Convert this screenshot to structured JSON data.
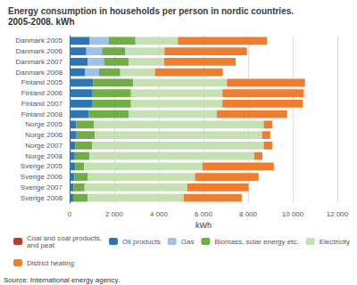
{
  "chart_data": {
    "type": "bar",
    "orientation": "horizontal",
    "stacked": true,
    "title": "Energy consumption in households per person in nordic countries.",
    "subtitle": "2005-2008. kWh",
    "xlabel": "kWh",
    "annotations": [
      "Source: International energy agency."
    ],
    "categories": [
      "Danmark 2005",
      "Danmark 2006",
      "Danmark 2007",
      "Danmark 2008",
      "  Finland 2005",
      "  Finland 2006",
      "  Finland 2007",
      "  Finland 2008",
      "    Norge 2005",
      "    Norge 2006",
      "    Norge 2007",
      "    Norge 2008",
      "  Sverige 2005",
      "  Sverige 2006",
      "  Sverige 2007",
      "  Sverige 2008"
    ],
    "series": [
      {
        "name": "Coal and coal products,\nand peat",
        "color": "#c0392b",
        "values": [
          0,
          0,
          0,
          0,
          0,
          0,
          0,
          0,
          0,
          0,
          0,
          0,
          0,
          0,
          0,
          0
        ]
      },
      {
        "name": "Oil products",
        "color": "#2e75b6",
        "values": [
          900,
          750,
          820,
          700,
          1050,
          1000,
          1000,
          850,
          300,
          280,
          250,
          230,
          250,
          220,
          170,
          160
        ]
      },
      {
        "name": "Gas",
        "color": "#9dc3e6",
        "values": [
          850,
          700,
          720,
          620,
          0,
          0,
          0,
          0,
          0,
          0,
          0,
          0,
          0,
          0,
          0,
          0
        ]
      },
      {
        "name": "Biomass, solar energy etc.",
        "color": "#70ad47",
        "values": [
          1200,
          1050,
          1100,
          950,
          1800,
          1750,
          1750,
          1800,
          800,
          850,
          750,
          650,
          400,
          600,
          500,
          650
        ]
      },
      {
        "name": "Electricity",
        "color": "#c5e0b3",
        "values": [
          1900,
          1750,
          1600,
          1550,
          4200,
          4100,
          4100,
          3950,
          7600,
          7500,
          7700,
          7400,
          5300,
          4800,
          4600,
          4300
        ]
      },
      {
        "name": "District heating",
        "color": "#ed7d31",
        "values": [
          4000,
          3700,
          3200,
          3050,
          3500,
          3650,
          3600,
          3150,
          380,
          360,
          380,
          360,
          3200,
          2850,
          2750,
          2600
        ]
      }
    ],
    "xlim": [
      0,
      12000
    ],
    "xticks": [
      0,
      {
        "value": 2000,
        "label": "2 000"
      },
      {
        "value": 4000,
        "label": "4 000"
      },
      {
        "value": 6000,
        "label": "6 000"
      },
      {
        "value": 8000,
        "label": "8 000"
      },
      {
        "value": 10000,
        "label": "10 000"
      },
      {
        "value": 12000,
        "label": "12 000"
      }
    ],
    "grid": true,
    "legend": "bottom"
  }
}
